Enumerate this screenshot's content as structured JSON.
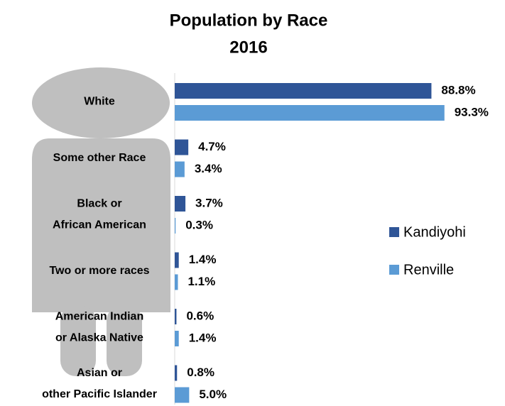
{
  "chart_data": {
    "type": "bar",
    "orientation": "horizontal",
    "title": "Population by Race",
    "subtitle": "2016",
    "categories": [
      [
        "White"
      ],
      [
        "Some other Race"
      ],
      [
        "Black or",
        "African American"
      ],
      [
        "Two or more races"
      ],
      [
        "American Indian",
        "or Alaska Native"
      ],
      [
        "Asian or",
        "other Pacific Islander"
      ]
    ],
    "series": [
      {
        "name": "Kandiyohi",
        "color": "#2f5597",
        "values": [
          88.8,
          4.7,
          3.7,
          1.4,
          0.6,
          0.8
        ],
        "value_labels": [
          "88.8%",
          "4.7%",
          "3.7%",
          "1.4%",
          "0.6%",
          "0.8%"
        ]
      },
      {
        "name": "Renville",
        "color": "#5b9bd5",
        "values": [
          93.3,
          3.4,
          0.3,
          1.1,
          1.4,
          5.0
        ],
        "value_labels": [
          "93.3%",
          "3.4%",
          "0.3%",
          "1.1%",
          "1.4%",
          "5.0%"
        ]
      }
    ],
    "legend": "right"
  }
}
